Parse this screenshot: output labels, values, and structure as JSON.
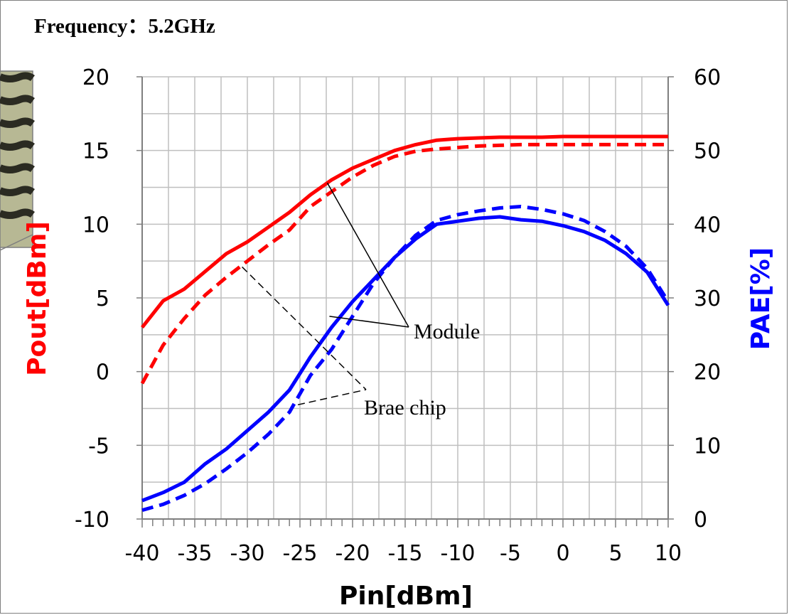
{
  "chart_data": {
    "type": "line",
    "title": "Frequency：5.2GHz",
    "xlabel": "Pin[dBm]",
    "ylabel_left": "Pout[dBm]",
    "ylabel_right": "PAE[%]",
    "xlim": [
      -40,
      10
    ],
    "ylim_left": [
      -10,
      20
    ],
    "ylim_right": [
      0,
      60
    ],
    "x_ticks": [
      "-40",
      "-35",
      "-30",
      "-25",
      "-20",
      "-15",
      "-10",
      "-5",
      "0",
      "5",
      "10"
    ],
    "y_left_ticks": [
      "-10",
      "-5",
      "0",
      "5",
      "10",
      "15",
      "20"
    ],
    "y_right_ticks": [
      "0",
      "10",
      "20",
      "30",
      "40",
      "50",
      "60"
    ],
    "grid": true,
    "colors": {
      "pout": "#ff0000",
      "pae": "#0000ff",
      "left_label": "#ff0000",
      "right_label": "#0000ff"
    },
    "series": [
      {
        "axis": "left",
        "style": "solid",
        "color": "#ff0000",
        "x": [
          -40,
          -38,
          -36,
          -34,
          -32,
          -30,
          -28,
          -26,
          -24,
          -22,
          -20,
          -18,
          -16,
          -14,
          -12,
          -10,
          -8,
          -6,
          -4,
          -2,
          0,
          2,
          4,
          6,
          8,
          10
        ],
        "y": [
          3.0,
          4.8,
          5.6,
          6.8,
          8.0,
          8.8,
          9.8,
          10.8,
          12.0,
          13.0,
          13.8,
          14.4,
          15.0,
          15.4,
          15.7,
          15.8,
          15.85,
          15.9,
          15.9,
          15.9,
          15.95,
          15.95,
          15.95,
          15.95,
          15.95,
          15.95
        ]
      },
      {
        "axis": "left",
        "style": "dashed",
        "color": "#ff0000",
        "x": [
          -40,
          -38,
          -36,
          -34,
          -32,
          -30,
          -28,
          -26,
          -24,
          -22,
          -20,
          -18,
          -16,
          -14,
          -12,
          -10,
          -8,
          -6,
          -4,
          -2,
          0,
          2,
          4,
          6,
          8,
          10
        ],
        "y": [
          -0.8,
          1.8,
          3.6,
          5.2,
          6.4,
          7.5,
          8.6,
          9.6,
          11.2,
          12.2,
          13.2,
          14.0,
          14.6,
          14.95,
          15.1,
          15.2,
          15.3,
          15.35,
          15.4,
          15.4,
          15.4,
          15.4,
          15.4,
          15.4,
          15.4,
          15.4
        ]
      },
      {
        "axis": "right",
        "style": "solid",
        "color": "#0000ff",
        "x": [
          -40,
          -38,
          -36,
          -34,
          -32,
          -30,
          -28,
          -26,
          -24,
          -22,
          -20,
          -18,
          -16,
          -14,
          -12,
          -10,
          -8,
          -6,
          -4,
          -2,
          0,
          2,
          4,
          6,
          8,
          10
        ],
        "y": [
          2.5,
          3.6,
          5.0,
          7.5,
          9.5,
          12.0,
          14.5,
          17.5,
          22.0,
          26.0,
          29.5,
          32.5,
          35.5,
          38.0,
          40.0,
          40.4,
          40.8,
          41.0,
          40.6,
          40.4,
          39.8,
          39.0,
          37.8,
          36.0,
          33.5,
          29.0
        ]
      },
      {
        "axis": "right",
        "style": "dashed",
        "color": "#0000ff",
        "x": [
          -40,
          -38,
          -36,
          -34,
          -32,
          -30,
          -28,
          -26,
          -24,
          -22,
          -20,
          -18,
          -16,
          -14,
          -12,
          -10,
          -8,
          -6,
          -4,
          -2,
          0,
          2,
          4,
          6,
          8,
          10
        ],
        "y": [
          1.2,
          2.0,
          3.2,
          4.8,
          6.8,
          9.0,
          11.5,
          14.5,
          19.5,
          23.0,
          27.5,
          32.0,
          35.5,
          38.5,
          40.5,
          41.3,
          41.8,
          42.2,
          42.4,
          42.0,
          41.4,
          40.5,
          39.0,
          37.0,
          34.0,
          29.5
        ]
      }
    ],
    "annotations": [
      {
        "text": "Module",
        "leaders": [
          {
            "from_x": -22.4,
            "from_y_left": 12.8
          },
          {
            "from_x": -22.2,
            "from_y_right": 27.5
          }
        ]
      },
      {
        "text": "Brae chip",
        "leaders": [
          {
            "from_x": -30.5,
            "from_y_left": 7.1
          },
          {
            "from_x": -25.2,
            "from_y_right": 15.5
          }
        ]
      }
    ]
  }
}
